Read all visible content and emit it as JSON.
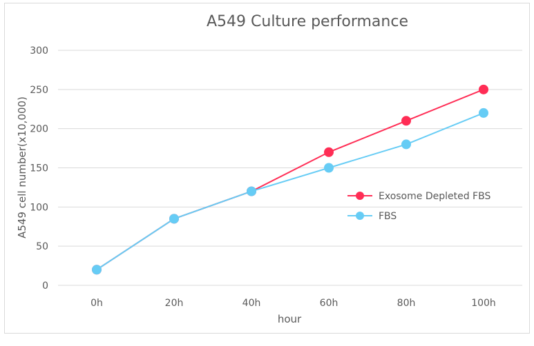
{
  "chart_data": {
    "type": "line",
    "title": "A549 Culture performance",
    "xlabel": "hour",
    "ylabel": "A549 cell number(x10,000)",
    "categories": [
      "0h",
      "20h",
      "40h",
      "60h",
      "80h",
      "100h"
    ],
    "ylim": [
      0,
      300
    ],
    "yticks": [
      0,
      50,
      100,
      150,
      200,
      250,
      300
    ],
    "grid": true,
    "legend_position": "right",
    "series": [
      {
        "name": "Exosome Depleted FBS",
        "color": "#ff2d55",
        "values": [
          20,
          85,
          120,
          170,
          210,
          250
        ]
      },
      {
        "name": "FBS",
        "color": "#66ccf5",
        "values": [
          20,
          85,
          120,
          150,
          180,
          220
        ]
      }
    ]
  }
}
